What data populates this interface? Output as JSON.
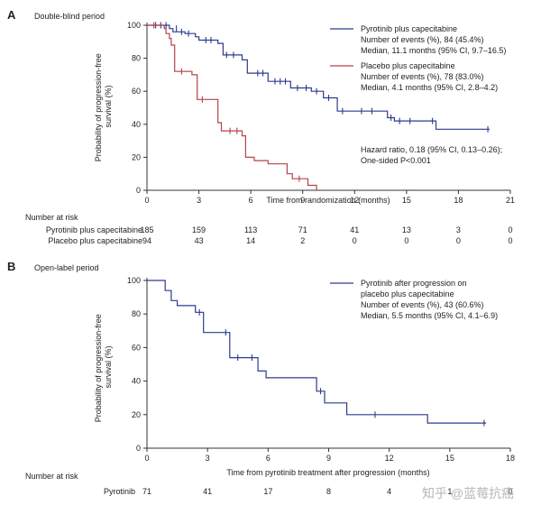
{
  "chart_data": [
    {
      "type": "line",
      "panel": "A",
      "title": "Double-blind period",
      "xlabel": "Time from randomization (months)",
      "ylabel": "Probability of progression-free survival (%)",
      "xlim": [
        0,
        21
      ],
      "ylim": [
        0,
        100
      ],
      "xticks": [
        0,
        3,
        6,
        9,
        12,
        15,
        18,
        21
      ],
      "yticks": [
        0,
        20,
        40,
        60,
        80,
        100
      ],
      "series": [
        {
          "name": "Pyrotinib plus capecitabine",
          "color": "#2e3b8c",
          "events_label": "Number of events (%), 84 (45.4%)",
          "median_label": "Median, 11.1 months (95% CI, 9.7–16.5)",
          "x": [
            0,
            1.3,
            1.3,
            1.5,
            1.5,
            2.2,
            2.2,
            2.8,
            2.8,
            3.0,
            3.0,
            4.1,
            4.1,
            4.4,
            4.4,
            5.5,
            5.5,
            5.8,
            5.8,
            7.0,
            7.0,
            8.3,
            8.3,
            9.5,
            9.5,
            10.2,
            10.2,
            11.0,
            11.0,
            13.9,
            13.9,
            14.3,
            14.3,
            16.7,
            16.7,
            19.8
          ],
          "y": [
            100,
            100,
            98,
            98,
            96,
            96,
            95,
            95,
            93,
            93,
            91,
            91,
            89,
            89,
            82,
            82,
            79,
            79,
            71,
            71,
            66,
            66,
            62,
            62,
            60,
            60,
            56,
            56,
            48,
            48,
            44,
            44,
            42,
            42,
            37,
            37
          ],
          "censor_x": [
            0.5,
            0.8,
            1.1,
            1.7,
            2.0,
            2.4,
            3.4,
            3.7,
            4.6,
            5.0,
            6.4,
            6.7,
            7.4,
            7.7,
            8.0,
            8.7,
            9.2,
            9.8,
            10.5,
            11.3,
            12.4,
            13.0,
            14.1,
            14.6,
            15.2,
            16.5,
            19.7
          ],
          "censor_y": [
            100,
            100,
            100,
            98,
            96,
            95,
            91,
            91,
            82,
            82,
            71,
            71,
            66,
            66,
            66,
            62,
            62,
            60,
            56,
            48,
            48,
            48,
            44,
            42,
            42,
            42,
            37
          ]
        },
        {
          "name": "Placebo plus capecitabine",
          "color": "#b8424a",
          "events_label": "Number of events (%), 78 (83.0%)",
          "median_label": "Median, 4.1 months (95% CI, 2.8–4.2)",
          "x": [
            0,
            1.0,
            1.0,
            1.1,
            1.1,
            1.3,
            1.3,
            1.4,
            1.4,
            1.6,
            1.6,
            2.6,
            2.6,
            2.9,
            2.9,
            4.1,
            4.1,
            4.3,
            4.3,
            5.5,
            5.5,
            5.7,
            5.7,
            6.2,
            6.2,
            7.0,
            7.0,
            8.1,
            8.1,
            8.4,
            8.4,
            9.3,
            9.3,
            9.8,
            9.8
          ],
          "y": [
            100,
            100,
            98,
            98,
            95,
            95,
            92,
            92,
            88,
            88,
            72,
            72,
            70,
            70,
            55,
            55,
            41,
            41,
            36,
            36,
            33,
            33,
            20,
            20,
            18,
            18,
            16,
            16,
            10,
            10,
            7,
            7,
            3,
            3,
            0
          ],
          "censor_x": [
            0.4,
            2.0,
            3.2,
            4.8,
            5.2,
            8.8
          ],
          "censor_y": [
            100,
            72,
            55,
            36,
            36,
            7
          ]
        }
      ],
      "annotations": [
        "Hazard ratio, 0.18 (95% CI, 0.13–0.26);",
        "One-sided P<0.001"
      ],
      "risk_table": {
        "heading": "Number at risk",
        "times": [
          0,
          3,
          6,
          9,
          12,
          15,
          18,
          21
        ],
        "rows": [
          {
            "label": "Pyrotinib plus capecitabine",
            "values": [
              "185",
              "159",
              "113",
              "71",
              "41",
              "13",
              "3",
              "0"
            ]
          },
          {
            "label": "Placebo plus capecitabine",
            "values": [
              "94",
              "43",
              "14",
              "2",
              "0",
              "0",
              "0",
              "0"
            ]
          }
        ]
      }
    },
    {
      "type": "line",
      "panel": "B",
      "title": "Open-label period",
      "xlabel": "Time from pyrotinib treatment after progression (months)",
      "ylabel": "Probability of progression-free survival (%)",
      "xlim": [
        0,
        18
      ],
      "ylim": [
        0,
        100
      ],
      "xticks": [
        0,
        3,
        6,
        9,
        12,
        15,
        18
      ],
      "yticks": [
        0,
        20,
        40,
        60,
        80,
        100
      ],
      "series": [
        {
          "name": "Pyrotinib after progression on placebo plus capecitabine",
          "color": "#2e3b8c",
          "events_label": "Number of events (%), 43 (60.6%)",
          "median_label": "Median, 5.5 months (95% CI, 4.1–6.9)",
          "x": [
            0,
            0.9,
            0.9,
            1.2,
            1.2,
            1.5,
            1.5,
            2.4,
            2.4,
            2.8,
            2.8,
            4.1,
            4.1,
            5.5,
            5.5,
            5.9,
            5.9,
            8.4,
            8.4,
            8.8,
            8.8,
            9.9,
            9.9,
            13.9,
            13.9,
            16.8
          ],
          "y": [
            100,
            100,
            94,
            94,
            88,
            88,
            85,
            85,
            81,
            81,
            69,
            69,
            54,
            54,
            46,
            46,
            42,
            42,
            34,
            34,
            27,
            27,
            20,
            20,
            15,
            15
          ],
          "censor_x": [
            2.6,
            3.9,
            4.5,
            5.2,
            8.6,
            11.3,
            16.7
          ],
          "censor_y": [
            81,
            69,
            54,
            54,
            34,
            20,
            15
          ]
        }
      ],
      "risk_table": {
        "heading": "Number at risk",
        "times": [
          0,
          3,
          6,
          9,
          12,
          15,
          18
        ],
        "rows": [
          {
            "label": "Pyrotinib",
            "values": [
              "71",
              "41",
              "17",
              "8",
              "4",
              "1",
              "0"
            ]
          }
        ]
      }
    }
  ],
  "watermark": "知乎 @蓝莓抗癌"
}
